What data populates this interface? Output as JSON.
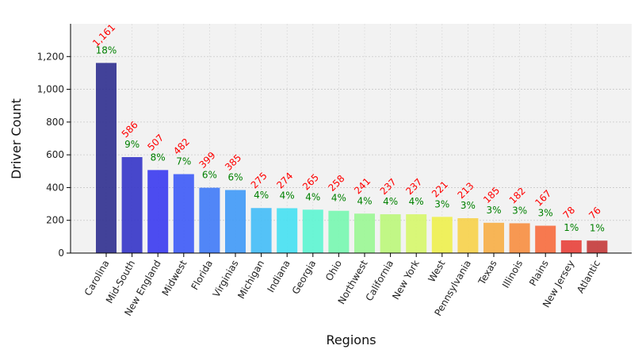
{
  "chart_data": {
    "type": "bar",
    "xlabel": "Regions",
    "ylabel": "Driver Count",
    "ylim": [
      0,
      1400
    ],
    "yticks": [
      0,
      200,
      400,
      600,
      800,
      1000,
      1200
    ],
    "ytick_labels": [
      "0",
      "200",
      "400",
      "600",
      "800",
      "1,000",
      "1,200"
    ],
    "grid": "horizontal and vertical dotted",
    "categories": [
      "Carolina",
      "Mid-South",
      "New England",
      "Midwest",
      "Florida",
      "Virginias",
      "Michigan",
      "Indiana",
      "Georgia",
      "Ohio",
      "Northwest",
      "California",
      "New York",
      "West",
      "Pennsylvania",
      "Texas",
      "Illinois",
      "Plains",
      "New Jersey",
      "Atlantic"
    ],
    "values": [
      1161,
      586,
      507,
      482,
      399,
      385,
      275,
      274,
      265,
      258,
      241,
      237,
      237,
      221,
      213,
      185,
      182,
      167,
      78,
      76
    ],
    "value_labels": [
      "1,161",
      "586",
      "507",
      "482",
      "399",
      "385",
      "275",
      "274",
      "265",
      "258",
      "241",
      "237",
      "237",
      "221",
      "213",
      "185",
      "182",
      "167",
      "78",
      "76"
    ],
    "percent_labels": [
      "18%",
      "9%",
      "8%",
      "7%",
      "6%",
      "6%",
      "4%",
      "4%",
      "4%",
      "4%",
      "4%",
      "4%",
      "4%",
      "3%",
      "3%",
      "3%",
      "3%",
      "3%",
      "1%",
      "1%"
    ],
    "colors": [
      "#2f2f8f",
      "#3434c8",
      "#3a3af0",
      "#3d5af7",
      "#3f7af7",
      "#3f99f7",
      "#43bdf7",
      "#45e0f2",
      "#5cf5d2",
      "#77f7b0",
      "#9af794",
      "#bbf77a",
      "#d6f76a",
      "#eef04d",
      "#f7d24a",
      "#f7ae45",
      "#f78e40",
      "#f76b3d",
      "#e8403a",
      "#c43a3a"
    ],
    "bar_alpha": 0.9,
    "value_label_color": "#ff0000",
    "percent_label_color": "#008000",
    "plot_background": "#f2f2f2"
  }
}
